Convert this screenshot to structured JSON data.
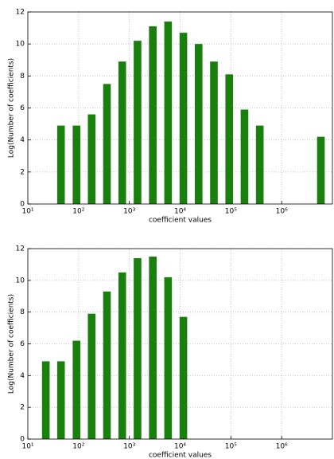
{
  "chart_data": [
    {
      "type": "bar",
      "xscale": "log",
      "grid": true,
      "color": "#1a800d",
      "xlabel": "coefficient values",
      "ylabel": "Log(Number of coefficients)",
      "x": [
        45,
        91,
        181,
        362,
        724,
        1448,
        2896,
        5793,
        11585,
        23170,
        46341,
        92682,
        185364,
        370728,
        5931642
      ],
      "values": [
        4.9,
        4.9,
        5.6,
        7.5,
        8.9,
        10.2,
        11.1,
        11.4,
        10.7,
        10.0,
        8.9,
        8.1,
        5.9,
        4.9,
        4.2
      ],
      "xlim": [
        10,
        10000000
      ],
      "xticks": [
        {
          "value": 10,
          "label": "10¹"
        },
        {
          "value": 100,
          "label": "10²"
        },
        {
          "value": 1000,
          "label": "10³"
        },
        {
          "value": 10000,
          "label": "10⁴"
        },
        {
          "value": 100000,
          "label": "10⁵"
        },
        {
          "value": 1000000,
          "label": "10⁶"
        }
      ],
      "ylim": [
        0,
        12
      ],
      "yticks": [
        0,
        2,
        4,
        6,
        8,
        10,
        12
      ]
    },
    {
      "type": "bar",
      "xscale": "log",
      "grid": true,
      "color": "#1a800d",
      "xlabel": "coefficient values",
      "ylabel": "Log(Number of coefficients)",
      "x": [
        22.6,
        45,
        91,
        181,
        362,
        724,
        1448,
        2896,
        5793,
        11585
      ],
      "values": [
        4.9,
        4.9,
        6.2,
        7.9,
        9.3,
        10.5,
        11.4,
        11.5,
        10.2,
        7.7
      ],
      "xlim": [
        10,
        10000000
      ],
      "xticks": [
        {
          "value": 10,
          "label": "10¹"
        },
        {
          "value": 100,
          "label": "10²"
        },
        {
          "value": 1000,
          "label": "10³"
        },
        {
          "value": 10000,
          "label": "10⁴"
        },
        {
          "value": 100000,
          "label": "10⁵"
        },
        {
          "value": 1000000,
          "label": "10⁶"
        }
      ],
      "ylim": [
        0,
        12
      ],
      "yticks": [
        0,
        2,
        4,
        6,
        8,
        10,
        12
      ]
    }
  ]
}
